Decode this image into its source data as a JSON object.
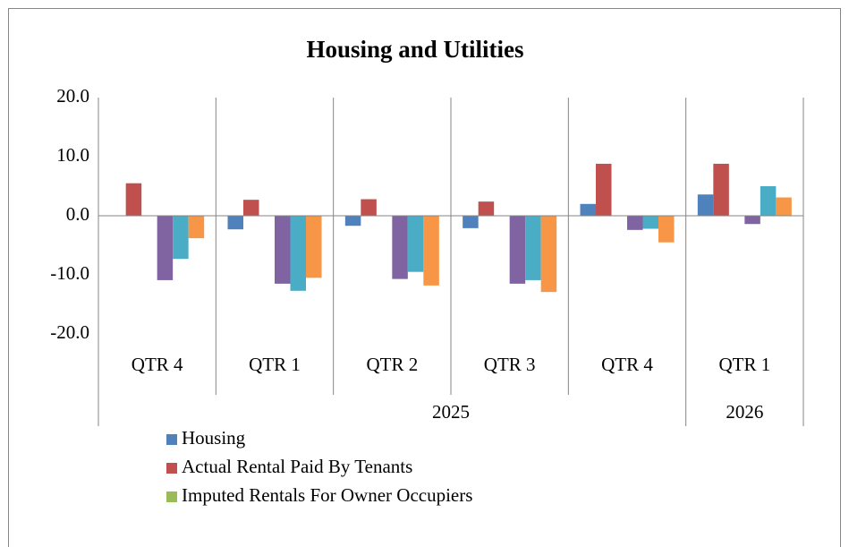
{
  "chart_data": {
    "type": "bar",
    "title": "Housing and Utilities",
    "categories": [
      "QTR 4",
      "QTR 1",
      "QTR 2",
      "QTR 3",
      "QTR 4",
      "QTR 1"
    ],
    "years": [
      null,
      "2025",
      "2025",
      "2025",
      "2025",
      "2026"
    ],
    "series": [
      {
        "name": "Housing",
        "color": "#4f81bd",
        "values": [
          0,
          -2.3,
          -1.7,
          -2.1,
          2.0,
          3.6
        ]
      },
      {
        "name": "Actual Rental Paid By Tenants",
        "color": "#c0504d",
        "values": [
          5.5,
          2.7,
          2.8,
          2.4,
          8.8,
          8.8
        ]
      },
      {
        "name": "Imputed Rentals For Owner Occupiers",
        "color": "#9bbb59",
        "values": [
          0,
          0,
          0,
          0,
          0,
          0
        ]
      },
      {
        "color": "#8064a2",
        "values": [
          -10.9,
          -11.5,
          -10.7,
          -11.5,
          -2.4,
          -1.4
        ]
      },
      {
        "color": "#4bacc6",
        "values": [
          -7.3,
          -12.7,
          -9.5,
          -10.9,
          -2.2,
          5.0
        ]
      },
      {
        "color": "#f79646",
        "values": [
          -3.8,
          -10.5,
          -11.8,
          -12.9,
          -4.5,
          3.1
        ]
      }
    ],
    "ylim": [
      -20,
      20
    ],
    "yticks": [
      {
        "value": -20,
        "label": "-20.0"
      },
      {
        "value": -10,
        "label": "-10.0"
      },
      {
        "value": 0,
        "label": "0.0"
      },
      {
        "value": 10,
        "label": "10.0"
      },
      {
        "value": 20,
        "label": "20.0"
      }
    ],
    "grid": false
  }
}
